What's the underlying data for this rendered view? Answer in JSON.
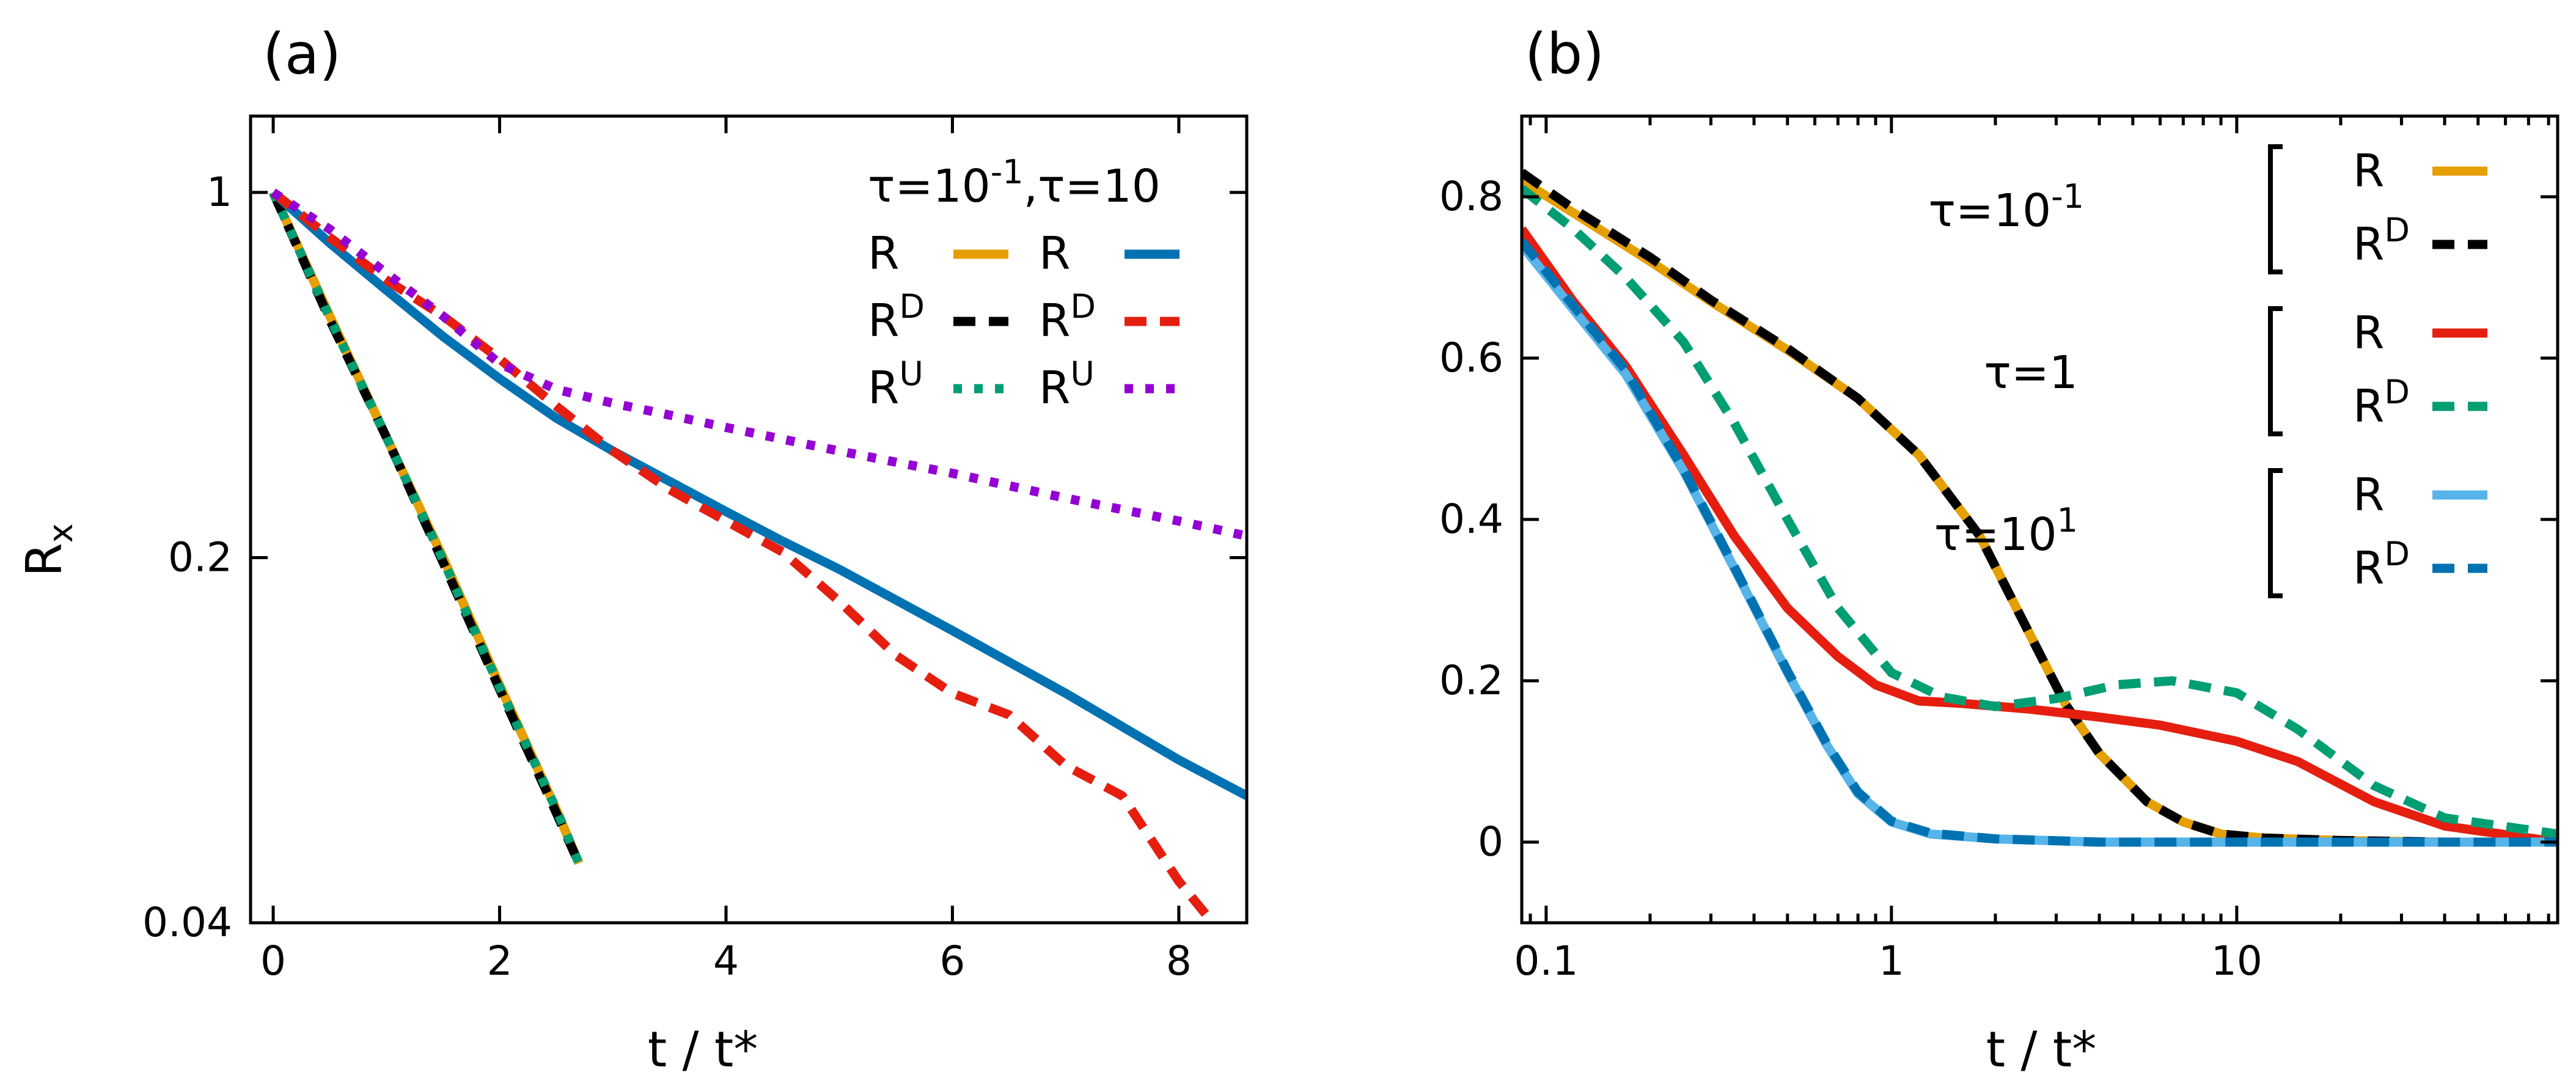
{
  "figure": {
    "panel_a_letter": "(a)",
    "panel_b_letter": "(b)",
    "xlabel": "t / t*",
    "ylabel_base": "R",
    "ylabel_sub": "x"
  },
  "colors": {
    "orange": "#E69F00",
    "black": "#000000",
    "green": "#009E73",
    "blue": "#0072B2",
    "red": "#E51E10",
    "purple": "#9400D3",
    "lightblue": "#56B4E9"
  },
  "legend_a": {
    "title": "τ=10",
    "title_exp": "-1",
    "title_rest": ",τ=10",
    "entries": [
      {
        "base": "R",
        "sup": ""
      },
      {
        "base": "R",
        "sup": "D"
      },
      {
        "base": "R",
        "sup": "U"
      }
    ]
  },
  "legend_b": {
    "groups": [
      {
        "label": "τ=10",
        "exp": "-1"
      },
      {
        "label": "τ=1",
        "exp": ""
      },
      {
        "label": "τ=10",
        "exp": "1"
      }
    ],
    "entries": [
      {
        "base": "R",
        "sup": ""
      },
      {
        "base": "R",
        "sup": "D"
      }
    ]
  },
  "chart_data": [
    {
      "panel": "a",
      "type": "line",
      "xlabel": "t / t*",
      "ylabel": "Rx",
      "yscale": "log",
      "xlim": [
        -0.2,
        8.6
      ],
      "ylim": [
        0.04,
        1.4
      ],
      "xticks": [
        0,
        2,
        4,
        6,
        8
      ],
      "yticks": [
        1,
        0.2,
        0.04
      ],
      "legend_position": "top-right",
      "series": [
        {
          "name": "R",
          "group": "τ=10^-1",
          "color": "orange",
          "dash": "solid",
          "x": [
            0,
            0.5,
            1.0,
            1.5,
            2.0,
            2.5,
            2.7
          ],
          "y": [
            1.0,
            0.58,
            0.34,
            0.2,
            0.114,
            0.066,
            0.052
          ]
        },
        {
          "name": "RD",
          "group": "τ=10^-1",
          "color": "black",
          "dash": "dash",
          "x": [
            0,
            0.5,
            1.0,
            1.5,
            2.0,
            2.5,
            2.7
          ],
          "y": [
            1.0,
            0.57,
            0.34,
            0.196,
            0.112,
            0.065,
            0.052
          ]
        },
        {
          "name": "RU",
          "group": "τ=10^-1",
          "color": "green",
          "dash": "dot",
          "x": [
            0,
            0.5,
            1.0,
            1.5,
            2.0,
            2.5,
            2.7
          ],
          "y": [
            1.0,
            0.575,
            0.34,
            0.198,
            0.113,
            0.066,
            0.052
          ]
        },
        {
          "name": "R",
          "group": "τ=10",
          "color": "blue",
          "dash": "solid",
          "x": [
            0,
            0.5,
            1.0,
            1.5,
            2.0,
            2.5,
            3.0,
            3.5,
            4.0,
            4.5,
            5.0,
            6.0,
            7.0,
            8.0,
            8.6
          ],
          "y": [
            1.0,
            0.8,
            0.65,
            0.53,
            0.44,
            0.37,
            0.32,
            0.28,
            0.245,
            0.215,
            0.19,
            0.145,
            0.11,
            0.082,
            0.07
          ]
        },
        {
          "name": "RD",
          "group": "τ=10",
          "color": "red",
          "dash": "dash",
          "x": [
            0,
            0.5,
            1.0,
            1.5,
            2.0,
            2.5,
            3.0,
            3.5,
            4.0,
            4.5,
            5.0,
            5.5,
            6.0,
            6.5,
            7.0,
            7.5,
            8.0,
            8.3
          ],
          "y": [
            1.0,
            0.82,
            0.68,
            0.58,
            0.48,
            0.39,
            0.32,
            0.27,
            0.235,
            0.205,
            0.165,
            0.13,
            0.11,
            0.1,
            0.08,
            0.07,
            0.048,
            0.04
          ]
        },
        {
          "name": "RU",
          "group": "τ=10",
          "color": "purple",
          "dash": "dot",
          "x": [
            0,
            0.5,
            1.0,
            1.5,
            2.0,
            2.5,
            3.0,
            3.5,
            4.0,
            5.0,
            6.0,
            7.0,
            8.0,
            8.6
          ],
          "y": [
            1.0,
            0.85,
            0.7,
            0.58,
            0.47,
            0.42,
            0.395,
            0.375,
            0.355,
            0.32,
            0.29,
            0.26,
            0.235,
            0.22
          ]
        }
      ]
    },
    {
      "panel": "b",
      "type": "line",
      "xlabel": "t / t*",
      "xscale": "log",
      "xlim": [
        0.085,
        85
      ],
      "ylim": [
        -0.1,
        0.9
      ],
      "xticks": [
        0.1,
        1,
        10
      ],
      "xtick_labels": [
        "0.1",
        "1",
        "10"
      ],
      "yticks": [
        0,
        0.2,
        0.4,
        0.6,
        0.8
      ],
      "legend_position": "top-right",
      "series": [
        {
          "name": "R",
          "group": "τ=10^-1",
          "color": "orange",
          "dash": "solid",
          "x": [
            0.085,
            0.12,
            0.2,
            0.3,
            0.5,
            0.8,
            1.2,
            1.8,
            2.5,
            3.2,
            4.0,
            5.5,
            7.0,
            9.0,
            12,
            20,
            40,
            85
          ],
          "y": [
            0.82,
            0.78,
            0.72,
            0.67,
            0.61,
            0.55,
            0.48,
            0.38,
            0.26,
            0.17,
            0.11,
            0.05,
            0.025,
            0.01,
            0.005,
            0.002,
            0.0,
            0.0
          ]
        },
        {
          "name": "RD",
          "group": "τ=10^-1",
          "color": "black",
          "dash": "dash",
          "x": [
            0.085,
            0.12,
            0.2,
            0.3,
            0.5,
            0.8,
            1.2,
            1.8,
            2.5,
            3.2,
            4.0,
            5.5,
            7.0,
            9.0,
            12,
            20,
            40,
            85
          ],
          "y": [
            0.83,
            0.785,
            0.725,
            0.672,
            0.612,
            0.55,
            0.48,
            0.38,
            0.26,
            0.17,
            0.11,
            0.05,
            0.025,
            0.01,
            0.005,
            0.002,
            0.0,
            0.0
          ]
        },
        {
          "name": "R",
          "group": "τ=1",
          "color": "red",
          "dash": "solid",
          "x": [
            0.085,
            0.12,
            0.17,
            0.25,
            0.35,
            0.5,
            0.7,
            0.9,
            1.2,
            1.6,
            2.5,
            4.0,
            6.0,
            10,
            15,
            25,
            40,
            85
          ],
          "y": [
            0.76,
            0.67,
            0.59,
            0.48,
            0.38,
            0.29,
            0.23,
            0.195,
            0.175,
            0.172,
            0.165,
            0.155,
            0.145,
            0.125,
            0.1,
            0.05,
            0.02,
            0.0
          ]
        },
        {
          "name": "RD",
          "group": "τ=1",
          "color": "green",
          "dash": "dash",
          "x": [
            0.085,
            0.12,
            0.17,
            0.25,
            0.35,
            0.5,
            0.7,
            1.0,
            1.4,
            2.0,
            3.0,
            4.5,
            6.5,
            10,
            15,
            25,
            40,
            85
          ],
          "y": [
            0.81,
            0.76,
            0.7,
            0.62,
            0.52,
            0.4,
            0.29,
            0.21,
            0.18,
            0.168,
            0.178,
            0.195,
            0.2,
            0.185,
            0.14,
            0.07,
            0.03,
            0.01
          ]
        },
        {
          "name": "R",
          "group": "τ=10^1",
          "color": "lightblue",
          "dash": "solid",
          "x": [
            0.085,
            0.12,
            0.17,
            0.25,
            0.35,
            0.5,
            0.65,
            0.8,
            1.0,
            1.3,
            2.0,
            4.0,
            10,
            20,
            40,
            85
          ],
          "y": [
            0.74,
            0.66,
            0.58,
            0.46,
            0.34,
            0.21,
            0.12,
            0.06,
            0.025,
            0.01,
            0.004,
            0.0,
            0.0,
            0.0,
            0.0,
            0.0
          ]
        },
        {
          "name": "RD",
          "group": "τ=10^1",
          "color": "blue",
          "dash": "dash",
          "x": [
            0.085,
            0.12,
            0.17,
            0.25,
            0.35,
            0.5,
            0.65,
            0.8,
            1.0,
            1.3,
            2.0,
            4.0,
            10,
            20,
            40,
            85
          ],
          "y": [
            0.745,
            0.665,
            0.585,
            0.462,
            0.342,
            0.212,
            0.122,
            0.062,
            0.026,
            0.011,
            0.004,
            0.0,
            0.0,
            0.0,
            0.0,
            0.0
          ]
        }
      ]
    }
  ]
}
